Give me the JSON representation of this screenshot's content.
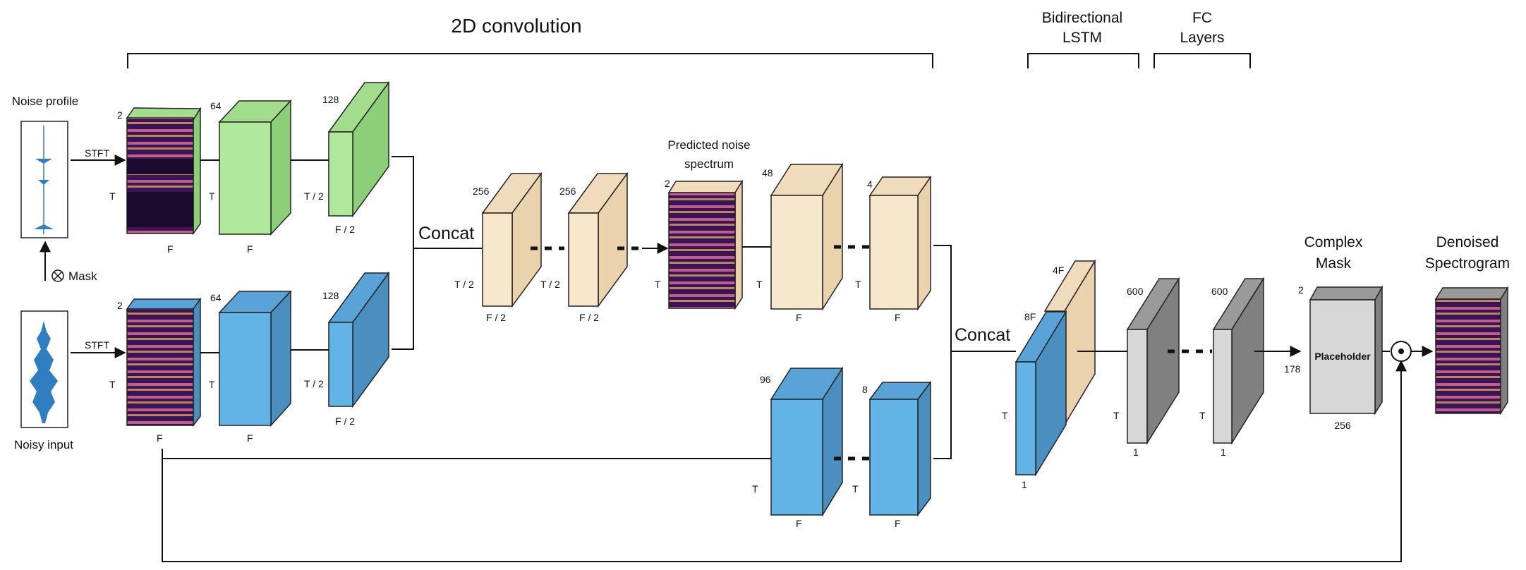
{
  "titles": {
    "conv2d": "2D convolution",
    "lstm_line1": "Bidirectional",
    "lstm_line2": "LSTM",
    "fc_line1": "FC",
    "fc_line2": "Layers",
    "complex_mask_line1": "Complex",
    "complex_mask_line2": "Mask",
    "denoised_line1": "Denoised",
    "denoised_line2": "Spectrogram",
    "predicted_line1": "Predicted noise",
    "predicted_line2": "spectrum"
  },
  "inputs": {
    "noise_profile": "Noise profile",
    "noisy_input": "Noisy input",
    "mask_op": "Mask",
    "stft": "STFT"
  },
  "concat": "Concat",
  "placeholder": "Placeholder",
  "dims": {
    "c2": "2",
    "c64": "64",
    "c128": "128",
    "c256": "256",
    "c48": "48",
    "c4": "4",
    "c96": "96",
    "c8": "8",
    "c4F": "4F",
    "c8F": "8F",
    "c600": "600",
    "c178": "178",
    "c1": "1",
    "T": "T",
    "F": "F",
    "T2": "T / 2",
    "F2": "F / 2"
  },
  "colors": {
    "green_front": "#b0e89c",
    "green_side": "#8ccf78",
    "green_top": "#a2dc8c",
    "blue_front": "#62b4e6",
    "blue_side": "#4a8fc0",
    "blue_top": "#5aa3d6",
    "tan_front": "#f7e7cc",
    "tan_side": "#ead2ad",
    "tan_top": "#f0dcbd",
    "gray_front": "#d7d7d7",
    "gray_side": "#808080",
    "gray_top": "#9a9a9a",
    "line": "#111111"
  }
}
